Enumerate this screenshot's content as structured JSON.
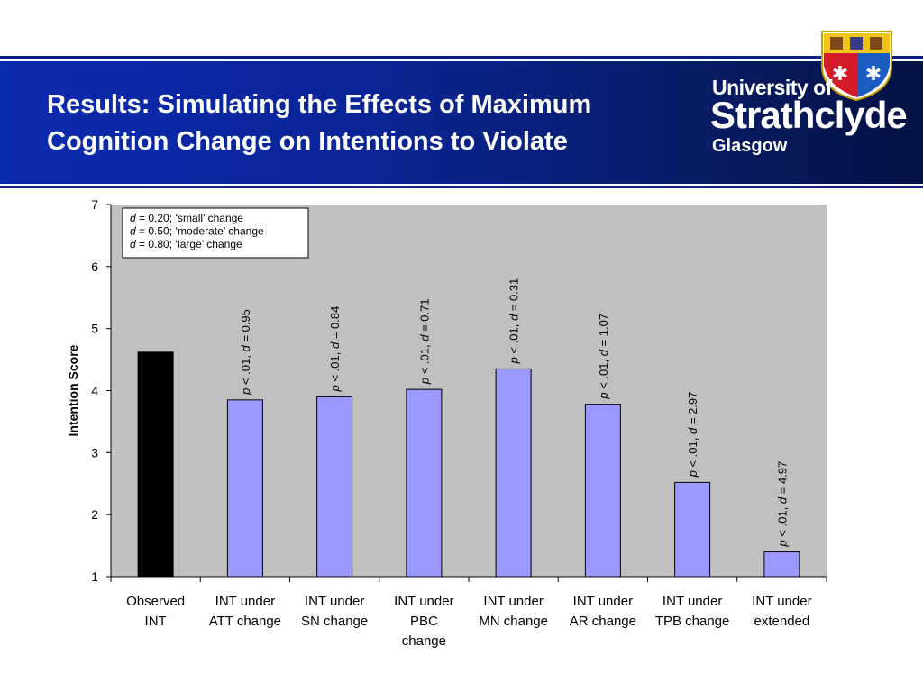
{
  "slide": {
    "title_line1": "Results: Simulating the Effects of Maximum",
    "title_line2": "Cognition Change on Intentions to Violate"
  },
  "logo": {
    "line1": "University of",
    "line2": "Strathclyde",
    "line3": "Glasgow"
  },
  "colors": {
    "banner": "#0a2596",
    "plot_background": "#c0c0c0",
    "observed_bar": "#000000",
    "simulated_bar": "#9999ff"
  },
  "chart_data": {
    "type": "bar",
    "ylabel": "Intention Score",
    "ylim": [
      1,
      7
    ],
    "yticks": [
      "1",
      "2",
      "3",
      "4",
      "5",
      "6",
      "7"
    ],
    "categories": [
      [
        "Observed",
        "INT"
      ],
      [
        "INT under",
        "ATT change"
      ],
      [
        "INT under",
        "SN change"
      ],
      [
        "INT under",
        "PBC",
        "change"
      ],
      [
        "INT under",
        "MN change"
      ],
      [
        "INT under",
        "AR change"
      ],
      [
        "INT under",
        "TPB change"
      ],
      [
        "INT under",
        "extended"
      ]
    ],
    "values": [
      4.62,
      3.85,
      3.9,
      4.02,
      4.35,
      3.78,
      2.52,
      1.4
    ],
    "bar_labels": [
      "",
      "p < .01, d = 0.95",
      "p < .01, d = 0.84",
      "p < .01, d = 0.71",
      "p < .01, d = 0.31",
      "p < .01, d = 1.07",
      "p < .01, d = 2.97",
      "p < .01, d = 4.97"
    ],
    "legend_notes": [
      {
        "d": "d",
        "text": " = 0.20; ‘small’ change"
      },
      {
        "d": "d",
        "text": " = 0.50; ‘moderate’ change"
      },
      {
        "d": "d",
        "text": " = 0.80; ‘large’ change"
      }
    ],
    "grid": false
  }
}
